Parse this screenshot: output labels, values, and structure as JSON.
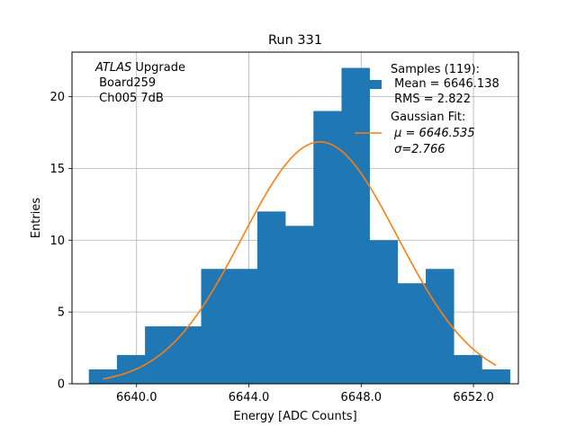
{
  "chart_data": {
    "type": "bar",
    "title": "Run 331",
    "xlabel": "Energy [ADC Counts]",
    "ylabel": "Entries",
    "xlim": [
      6637.7,
      6653.6
    ],
    "ylim": [
      0,
      23.1
    ],
    "grid": true,
    "x_ticks": [
      6640.0,
      6644.0,
      6648.0,
      6652.0
    ],
    "x_tick_labels": [
      "6640.0",
      "6644.0",
      "6648.0",
      "6652.0"
    ],
    "y_ticks": [
      0,
      5,
      10,
      15,
      20
    ],
    "y_tick_labels": [
      "0",
      "5",
      "10",
      "15",
      "20"
    ],
    "histogram": {
      "name": "Samples (119):",
      "color": "#1f77b4",
      "bin_edges": [
        6638.3,
        6639.3,
        6640.3,
        6641.3,
        6642.3,
        6643.3,
        6644.3,
        6645.3,
        6646.3,
        6647.3,
        6648.3,
        6649.3,
        6650.3,
        6651.3,
        6652.3,
        6653.3
      ],
      "counts": [
        1,
        2,
        4,
        4,
        8,
        8,
        12,
        11,
        19,
        22,
        10,
        7,
        8,
        2,
        1
      ]
    },
    "fit": {
      "name": "Gaussian Fit:",
      "color": "#ff7f0e",
      "mu": 6646.535,
      "sigma": 2.766,
      "amplitude": 16.85,
      "x_range": [
        6638.8,
        6652.8
      ]
    },
    "annotation": {
      "line1_italic": "ATLAS",
      "line1_rest": " Upgrade",
      "line2": " Board259",
      "line3": " Ch005 7dB"
    },
    "legend": {
      "placement": "top-right",
      "hist_lines": [
        "Samples (119):",
        " Mean = 6646.138",
        " RMS = 2.822"
      ],
      "fit_lines": [
        "Gaussian Fit:",
        " μ = 6646.535",
        " σ=2.766"
      ]
    }
  }
}
